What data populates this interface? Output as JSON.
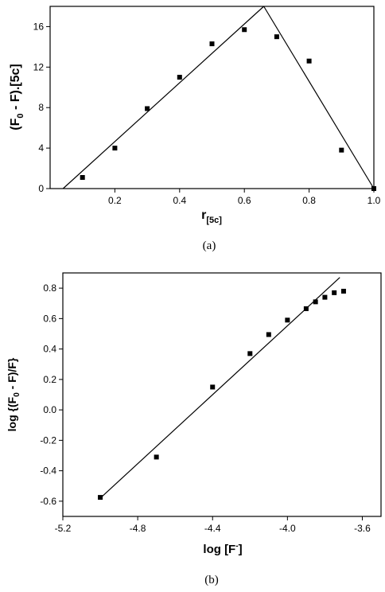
{
  "chart_data": [
    {
      "type": "scatter",
      "caption": "(a)",
      "xlabel": {
        "main": "r",
        "sub": "[5c]"
      },
      "ylabel": {
        "pre": "(F",
        "sub": "0",
        "mid": " - F).",
        "bold": "[5c]"
      },
      "xlim": [
        0.0,
        1.0
      ],
      "ylim": [
        0,
        18
      ],
      "x_ticks": [
        0.2,
        0.4,
        0.6,
        0.8,
        1.0
      ],
      "x_tick_labels": [
        "0.2",
        "0.4",
        "0.6",
        "0.8",
        "1.0"
      ],
      "y_ticks": [
        0,
        4,
        8,
        12,
        16
      ],
      "y_tick_labels": [
        "0",
        "4",
        "8",
        "12",
        "16"
      ],
      "grid": false,
      "series": [
        {
          "points": [
            [
              0.1,
              1.1
            ],
            [
              0.2,
              4.0
            ],
            [
              0.3,
              7.9
            ],
            [
              0.4,
              11.0
            ],
            [
              0.5,
              14.3
            ],
            [
              0.6,
              15.7
            ],
            [
              0.7,
              15.0
            ],
            [
              0.8,
              12.6
            ],
            [
              0.9,
              3.8
            ],
            [
              1.0,
              0.0
            ]
          ]
        }
      ],
      "fit_lines": [
        [
          [
            0.04,
            0.0
          ],
          [
            0.66,
            18.0
          ]
        ],
        [
          [
            0.66,
            18.0
          ],
          [
            1.0,
            0.0
          ]
        ]
      ]
    },
    {
      "type": "scatter",
      "caption": "(b)",
      "xlabel": {
        "main": "log [F",
        "sup": "-",
        "end": "]"
      },
      "ylabel": {
        "pre": "log {(F",
        "sub": "0",
        "end": " - F)/F}"
      },
      "xlim": [
        -5.2,
        -3.5
      ],
      "ylim": [
        -0.7,
        0.9
      ],
      "x_ticks": [
        -5.2,
        -4.8,
        -4.4,
        -4.0,
        -3.6
      ],
      "x_tick_labels": [
        "-5.2",
        "-4.8",
        "-4.4",
        "-4.0",
        "-3.6"
      ],
      "y_ticks": [
        -0.6,
        -0.4,
        -0.2,
        0.0,
        0.2,
        0.4,
        0.6,
        0.8
      ],
      "y_tick_labels": [
        "-0.6",
        "-0.4",
        "-0.2",
        "0.0",
        "0.2",
        "0.4",
        "0.6",
        "0.8"
      ],
      "grid": false,
      "series": [
        {
          "points": [
            [
              -5.0,
              -0.575
            ],
            [
              -4.7,
              -0.31
            ],
            [
              -4.4,
              0.15
            ],
            [
              -4.2,
              0.37
            ],
            [
              -4.1,
              0.495
            ],
            [
              -4.0,
              0.59
            ],
            [
              -3.9,
              0.665
            ],
            [
              -3.85,
              0.71
            ],
            [
              -3.8,
              0.74
            ],
            [
              -3.75,
              0.77
            ],
            [
              -3.7,
              0.78
            ]
          ]
        }
      ],
      "fit_lines": [
        [
          [
            -5.0,
            -0.58
          ],
          [
            -3.72,
            0.87
          ]
        ]
      ]
    }
  ]
}
